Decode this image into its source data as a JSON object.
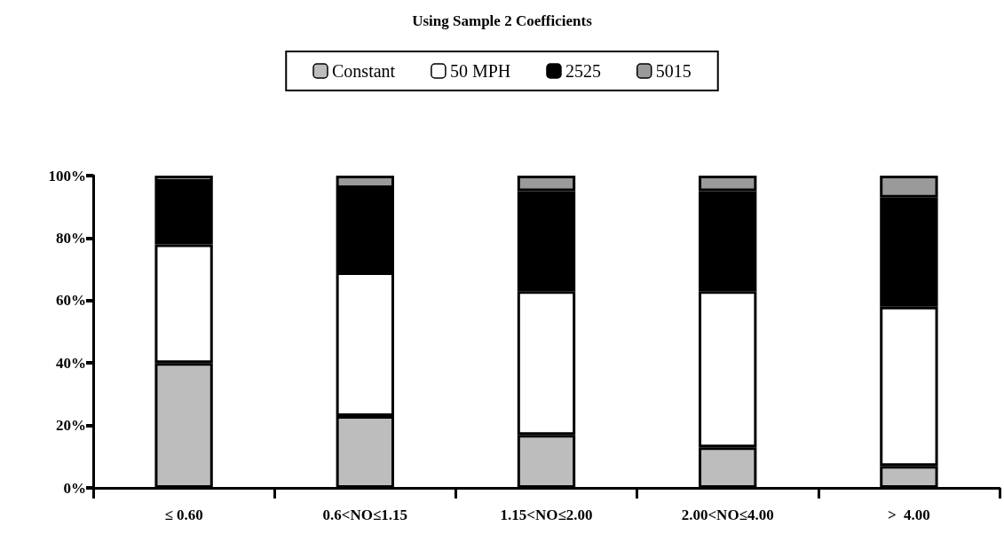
{
  "chart_data": {
    "type": "bar",
    "title": "Using Sample 2 Coefficients",
    "categories": [
      "≤ 0.60",
      "0.6<NO≤1.15",
      "1.15<NO≤2.00",
      "2.00<NO≤4.00",
      ">  4.00"
    ],
    "series": [
      {
        "name": "Constant",
        "color": "#bdbdbd",
        "values": [
          40,
          23,
          17,
          13,
          7
        ]
      },
      {
        "name": "50 MPH",
        "color": "#ffffff",
        "values": [
          38,
          46,
          46,
          50,
          51
        ]
      },
      {
        "name": "2525",
        "color": "#000000",
        "values": [
          20,
          27,
          32,
          32,
          35
        ]
      },
      {
        "name": "5015",
        "color": "#9a9a9a",
        "values": [
          2,
          4,
          5,
          5,
          7
        ]
      }
    ],
    "stacked": true,
    "ylim": [
      0,
      100
    ],
    "yticks": [
      {
        "value": 0,
        "label": "0%"
      },
      {
        "value": 20,
        "label": "20%"
      },
      {
        "value": 40,
        "label": "40%"
      },
      {
        "value": 60,
        "label": "60%"
      },
      {
        "value": 80,
        "label": "80%"
      },
      {
        "value": 100,
        "label": "100%"
      }
    ],
    "grid": false,
    "legend": "top"
  }
}
